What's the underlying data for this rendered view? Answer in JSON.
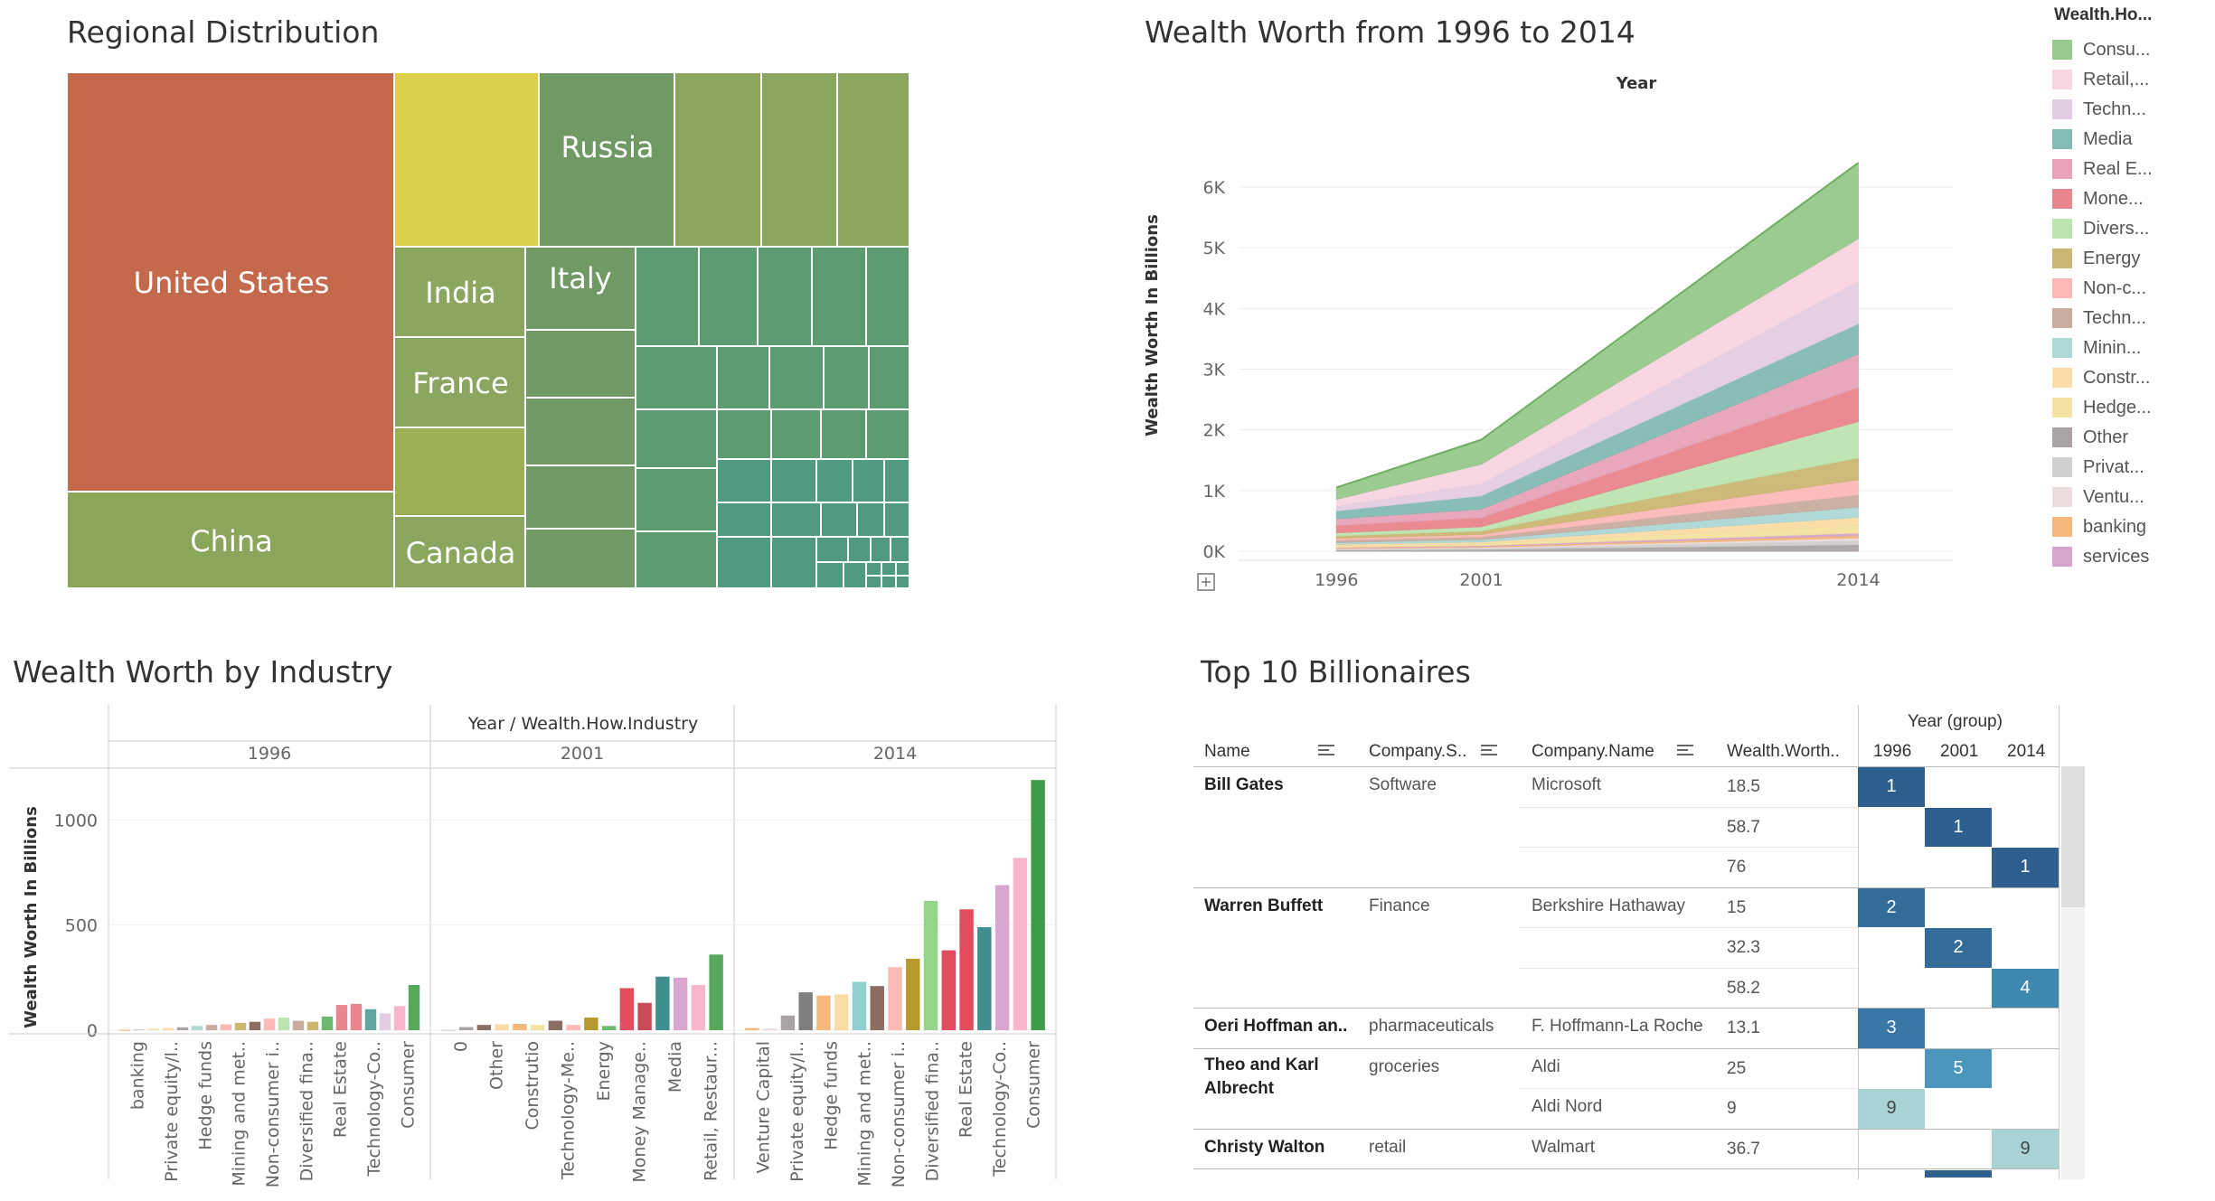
{
  "treemap": {
    "title": "Regional Distribution",
    "labels": [
      "United States",
      "China",
      "Russia",
      "India",
      "Italy",
      "France",
      "Canada"
    ],
    "colors": {
      "us": "#c4694c",
      "china": "#8aa65a",
      "yellow": "#dccf4a",
      "olive": "#9bb055",
      "green1": "#8aa65f",
      "green2": "#6f9a64",
      "green3": "#5e9a72",
      "green4": "#4f9a80"
    }
  },
  "area": {
    "title": "Wealth Worth from 1996 to 2014",
    "top_label": "Year",
    "ylabel": "Wealth Worth In Billions",
    "yticks": [
      "0K",
      "1K",
      "2K",
      "3K",
      "4K",
      "5K",
      "6K"
    ],
    "xticks": [
      "1996",
      "2001",
      "2014"
    ]
  },
  "legend": {
    "title": "Wealth.Ho...",
    "items": [
      {
        "label": "Consu...",
        "color": "#97c98c"
      },
      {
        "label": "Retail,...",
        "color": "#f9d5e1"
      },
      {
        "label": "Techn...",
        "color": "#e3cde2"
      },
      {
        "label": "Media",
        "color": "#83bbb5"
      },
      {
        "label": "Real E...",
        "color": "#e8a3b8"
      },
      {
        "label": "Mone...",
        "color": "#e9858d"
      },
      {
        "label": "Divers...",
        "color": "#bde3b0"
      },
      {
        "label": "Energy",
        "color": "#ccb772"
      },
      {
        "label": "Non-c...",
        "color": "#fbbab8"
      },
      {
        "label": "Techn...",
        "color": "#c9aca0"
      },
      {
        "label": "Minin...",
        "color": "#acd8d5"
      },
      {
        "label": "Constr...",
        "color": "#fbdca6"
      },
      {
        "label": "Hedge...",
        "color": "#f3e2a1"
      },
      {
        "label": "Other",
        "color": "#a9a3a3"
      },
      {
        "label": "Privat...",
        "color": "#d0cfcd"
      },
      {
        "label": "Ventu...",
        "color": "#ecdcdd"
      },
      {
        "label": "banking",
        "color": "#f5b87a"
      },
      {
        "label": "services",
        "color": "#d8a6cd"
      }
    ]
  },
  "bar": {
    "title": "Wealth Worth by Industry",
    "header": "Year / Wealth.How.Industry",
    "ylabel": "Wealth Worth In Billions",
    "yticks": [
      "0",
      "500",
      "1000"
    ],
    "years": [
      "1996",
      "2001",
      "2014"
    ]
  },
  "chart_data": [
    {
      "type": "area",
      "title": "Wealth Worth from 1996 to 2014",
      "x": [
        1996,
        2001,
        2014
      ],
      "ylabel": "Wealth Worth In Billions",
      "ylim": [
        0,
        6500
      ],
      "stacked_total": [
        1050,
        1740,
        6500
      ],
      "series": [
        {
          "name": "Other",
          "values": [
            20,
            30,
            110
          ]
        },
        {
          "name": "Privat...",
          "values": [
            15,
            20,
            70
          ]
        },
        {
          "name": "Ventu...",
          "values": [
            10,
            15,
            40
          ]
        },
        {
          "name": "banking",
          "values": [
            10,
            15,
            40
          ]
        },
        {
          "name": "services",
          "values": [
            10,
            15,
            40
          ]
        },
        {
          "name": "Hedge...",
          "values": [
            25,
            30,
            130
          ]
        },
        {
          "name": "Constr...",
          "values": [
            25,
            30,
            130
          ]
        },
        {
          "name": "Minin...",
          "values": [
            30,
            40,
            170
          ]
        },
        {
          "name": "Techn...",
          "values": [
            40,
            45,
            200
          ]
        },
        {
          "name": "Non-c...",
          "values": [
            30,
            40,
            250
          ]
        },
        {
          "name": "Energy",
          "values": [
            40,
            55,
            360
          ]
        },
        {
          "name": "Divers...",
          "values": [
            50,
            70,
            600
          ]
        },
        {
          "name": "Mone...",
          "values": [
            120,
            150,
            560
          ]
        },
        {
          "name": "Real E...",
          "values": [
            110,
            140,
            550
          ]
        },
        {
          "name": "Media",
          "values": [
            130,
            220,
            500
          ]
        },
        {
          "name": "Techn...",
          "values": [
            80,
            200,
            700
          ]
        },
        {
          "name": "Retail,...",
          "values": [
            110,
            320,
            700
          ]
        },
        {
          "name": "Consu...",
          "values": [
            195,
            405,
            1250
          ]
        }
      ]
    },
    {
      "type": "bar",
      "title": "Wealth Worth by Industry",
      "ylabel": "Wealth Worth In Billions",
      "ylim": [
        0,
        1200
      ],
      "groups": [
        {
          "name": "1996",
          "categories": [
            "banking",
            "Private equity/l..",
            "Hedge funds",
            "Mining and met..",
            "Non-consumer i..",
            "Diversified fina..",
            "Real Estate",
            "Technology-Co..",
            "Consumer"
          ],
          "bars": [
            {
              "v": 2,
              "c": "#f5b87a"
            },
            {
              "v": 4,
              "c": "#d0cfcd"
            },
            {
              "v": 7,
              "c": "#f3e2a1"
            },
            {
              "v": 10,
              "c": "#fbdca6"
            },
            {
              "v": 14,
              "c": "#a9a3a3"
            },
            {
              "v": 20,
              "c": "#acd8d5"
            },
            {
              "v": 25,
              "c": "#c9aca0"
            },
            {
              "v": 28,
              "c": "#fbbab8"
            },
            {
              "v": 35,
              "c": "#ccb772"
            },
            {
              "v": 40,
              "c": "#8c6d62"
            },
            {
              "v": 55,
              "c": "#fbbab8"
            },
            {
              "v": 60,
              "c": "#bde3b0"
            },
            {
              "v": 45,
              "c": "#c9aca0"
            },
            {
              "v": 40,
              "c": "#ccb772"
            },
            {
              "v": 65,
              "c": "#6fb870"
            },
            {
              "v": 120,
              "c": "#e9858d"
            },
            {
              "v": 125,
              "c": "#e9858d"
            },
            {
              "v": 100,
              "c": "#5ea6a0"
            },
            {
              "v": 80,
              "c": "#e3cde2"
            },
            {
              "v": 115,
              "c": "#f9b5cd"
            },
            {
              "v": 215,
              "c": "#57a85b"
            }
          ]
        },
        {
          "name": "2001",
          "categories": [
            "0",
            "Other",
            "Construtio",
            "Technology-Me..",
            "Energy",
            "Money Manage..",
            "Media",
            "Retail, Restaur..."
          ],
          "bars": [
            {
              "v": 2,
              "c": "#d0cfcd"
            },
            {
              "v": 15,
              "c": "#a9a3a3"
            },
            {
              "v": 25,
              "c": "#8c6d62"
            },
            {
              "v": 28,
              "c": "#fbdca6"
            },
            {
              "v": 30,
              "c": "#f5b87a"
            },
            {
              "v": 25,
              "c": "#f3e2a1"
            },
            {
              "v": 45,
              "c": "#8c6d62"
            },
            {
              "v": 25,
              "c": "#fbbab8"
            },
            {
              "v": 60,
              "c": "#b79a2d"
            },
            {
              "v": 20,
              "c": "#6fb870"
            },
            {
              "v": 200,
              "c": "#e34c5e"
            },
            {
              "v": 130,
              "c": "#c94b58"
            },
            {
              "v": 255,
              "c": "#3f8f8f"
            },
            {
              "v": 250,
              "c": "#d9a6cf"
            },
            {
              "v": 215,
              "c": "#f9b5cd"
            },
            {
              "v": 360,
              "c": "#57a85b"
            }
          ]
        },
        {
          "name": "2014",
          "categories": [
            "Venture Capital",
            "Private equity/l..",
            "Hedge funds",
            "Mining and met..",
            "Non-consumer i..",
            "Diversified fina..",
            "Real Estate",
            "Technology-Co..",
            "Consumer"
          ],
          "bars": [
            {
              "v": 10,
              "c": "#f5b87a"
            },
            {
              "v": 8,
              "c": "#ecdcdd"
            },
            {
              "v": 70,
              "c": "#a9a3a3"
            },
            {
              "v": 180,
              "c": "#7f7f7f"
            },
            {
              "v": 165,
              "c": "#f5b87a"
            },
            {
              "v": 170,
              "c": "#fbdca6"
            },
            {
              "v": 230,
              "c": "#8fcfcf"
            },
            {
              "v": 210,
              "c": "#8c6d62"
            },
            {
              "v": 300,
              "c": "#fbbab8"
            },
            {
              "v": 340,
              "c": "#b79a2d"
            },
            {
              "v": 615,
              "c": "#95d58a"
            },
            {
              "v": 380,
              "c": "#e34c5e"
            },
            {
              "v": 575,
              "c": "#e34c5e"
            },
            {
              "v": 490,
              "c": "#3f8f8f"
            },
            {
              "v": 690,
              "c": "#d9a6cf"
            },
            {
              "v": 820,
              "c": "#f9b5cd"
            },
            {
              "v": 1190,
              "c": "#3e9b47"
            }
          ]
        }
      ]
    },
    {
      "type": "table",
      "title": "Top 10 Billionaires",
      "group_header": "Year (group)",
      "columns": [
        "Name",
        "Company.S..",
        "Company.Name",
        "Wealth.Worth..",
        "1996",
        "2001",
        "2014"
      ],
      "rows": [
        {
          "name": "Bill Gates",
          "sector": "Software",
          "company": "Microsoft",
          "wealth": "18.5",
          "rank": "1",
          "year": "1996",
          "color": "#2e5f8e"
        },
        {
          "name": "",
          "sector": "",
          "company": "",
          "wealth": "58.7",
          "rank": "1",
          "year": "2001",
          "color": "#2e5f8e"
        },
        {
          "name": "",
          "sector": "",
          "company": "",
          "wealth": "76",
          "rank": "1",
          "year": "2014",
          "color": "#2e5f8e"
        },
        {
          "name": "Warren Buffett",
          "sector": "Finance",
          "company": "Berkshire Hathaway",
          "wealth": "15",
          "rank": "2",
          "year": "1996",
          "color": "#346c99"
        },
        {
          "name": "",
          "sector": "",
          "company": "",
          "wealth": "32.3",
          "rank": "2",
          "year": "2001",
          "color": "#346c99"
        },
        {
          "name": "",
          "sector": "",
          "company": "",
          "wealth": "58.2",
          "rank": "4",
          "year": "2014",
          "color": "#3f88b0"
        },
        {
          "name": "Oeri Hoffman an..",
          "sector": "pharmaceuticals",
          "company": "F. Hoffmann-La Roche",
          "wealth": "13.1",
          "rank": "3",
          "year": "1996",
          "color": "#3a77a4"
        },
        {
          "name": "Theo and Karl Albrecht",
          "sector": "groceries",
          "company": "Aldi",
          "wealth": "25",
          "rank": "5",
          "year": "2001",
          "color": "#4a96bd"
        },
        {
          "name": "",
          "sector": "",
          "company": "Aldi Nord",
          "wealth": "9",
          "rank": "9",
          "year": "1996",
          "color": "#a8d3d4"
        },
        {
          "name": "Christy Walton",
          "sector": "retail",
          "company": "Walmart",
          "wealth": "36.7",
          "rank": "9",
          "year": "2014",
          "color": "#a8d3d4"
        }
      ]
    }
  ]
}
